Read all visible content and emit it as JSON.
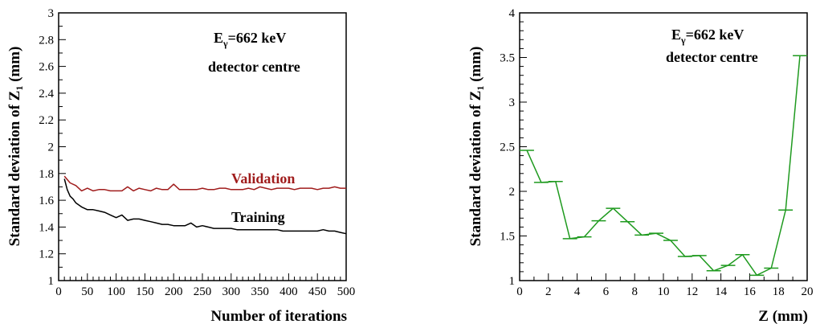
{
  "chart_data": [
    {
      "type": "line",
      "xlabel": "Number of iterations",
      "ylabel": {
        "main": "Standard deviation of Z",
        "sub": "1",
        "unit": " (mm)"
      },
      "xlim": [
        0,
        500
      ],
      "ylim": [
        1,
        3
      ],
      "x_ticks": [
        0,
        50,
        100,
        150,
        200,
        250,
        300,
        350,
        400,
        450,
        500
      ],
      "y_ticks": [
        1,
        1.2,
        1.4,
        1.6,
        1.8,
        2,
        2.2,
        2.4,
        2.6,
        2.8,
        3
      ],
      "grid": false,
      "annotation": {
        "line1_prefix": "E",
        "line1_sub": "γ",
        "line1_rest": "=662 keV",
        "line2": "detector centre"
      },
      "series": [
        {
          "name": "Validation",
          "color": "#a01c1c",
          "x": [
            10,
            20,
            30,
            40,
            50,
            60,
            70,
            80,
            90,
            100,
            110,
            120,
            130,
            140,
            150,
            160,
            170,
            180,
            190,
            200,
            210,
            220,
            230,
            240,
            250,
            260,
            270,
            280,
            290,
            300,
            310,
            320,
            330,
            340,
            350,
            360,
            370,
            380,
            390,
            400,
            410,
            420,
            430,
            440,
            450,
            460,
            470,
            480,
            490,
            500
          ],
          "y": [
            1.78,
            1.73,
            1.71,
            1.67,
            1.69,
            1.67,
            1.68,
            1.68,
            1.67,
            1.67,
            1.67,
            1.7,
            1.67,
            1.69,
            1.68,
            1.67,
            1.69,
            1.68,
            1.68,
            1.72,
            1.68,
            1.68,
            1.68,
            1.68,
            1.69,
            1.68,
            1.68,
            1.69,
            1.69,
            1.68,
            1.68,
            1.68,
            1.69,
            1.68,
            1.7,
            1.69,
            1.68,
            1.69,
            1.69,
            1.69,
            1.68,
            1.69,
            1.69,
            1.69,
            1.68,
            1.69,
            1.69,
            1.7,
            1.69,
            1.69
          ]
        },
        {
          "name": "Training",
          "color": "#000000",
          "x": [
            10,
            15,
            20,
            25,
            30,
            40,
            50,
            60,
            70,
            80,
            90,
            100,
            110,
            120,
            130,
            140,
            150,
            160,
            170,
            180,
            190,
            200,
            210,
            220,
            230,
            240,
            250,
            260,
            270,
            280,
            290,
            300,
            310,
            320,
            330,
            340,
            350,
            360,
            370,
            380,
            390,
            400,
            410,
            420,
            430,
            440,
            450,
            460,
            470,
            480,
            490,
            500
          ],
          "y": [
            1.76,
            1.68,
            1.63,
            1.61,
            1.58,
            1.55,
            1.53,
            1.53,
            1.52,
            1.51,
            1.49,
            1.47,
            1.49,
            1.45,
            1.46,
            1.46,
            1.45,
            1.44,
            1.43,
            1.42,
            1.42,
            1.41,
            1.41,
            1.41,
            1.43,
            1.4,
            1.41,
            1.4,
            1.39,
            1.39,
            1.39,
            1.39,
            1.38,
            1.38,
            1.38,
            1.38,
            1.38,
            1.38,
            1.38,
            1.38,
            1.37,
            1.37,
            1.37,
            1.37,
            1.37,
            1.37,
            1.37,
            1.38,
            1.37,
            1.37,
            1.36,
            1.35
          ]
        }
      ]
    },
    {
      "type": "line",
      "xlabel": "Z (mm)",
      "ylabel": {
        "main": "Standard deviation of Z",
        "sub": "1",
        "unit": " (mm)"
      },
      "xlim": [
        0,
        20
      ],
      "ylim": [
        1,
        4
      ],
      "x_ticks": [
        0,
        2,
        4,
        6,
        8,
        10,
        12,
        14,
        16,
        18,
        20
      ],
      "y_ticks": [
        1,
        1.5,
        2,
        2.5,
        3,
        3.5,
        4
      ],
      "grid": false,
      "annotation": {
        "line1_prefix": "E",
        "line1_sub": "γ",
        "line1_rest": "=662 keV",
        "line2": "detector centre"
      },
      "series": [
        {
          "color": "#1f9a1f",
          "bin_width": 1,
          "x": [
            0.5,
            1.5,
            2.5,
            3.5,
            4.5,
            5.5,
            6.5,
            7.5,
            8.5,
            9.5,
            10.5,
            11.5,
            12.5,
            13.5,
            14.5,
            15.5,
            16.5,
            17.5,
            18.5,
            19.5
          ],
          "y": [
            2.46,
            2.1,
            2.11,
            1.47,
            1.49,
            1.67,
            1.81,
            1.66,
            1.51,
            1.53,
            1.45,
            1.27,
            1.28,
            1.11,
            1.17,
            1.29,
            1.06,
            1.14,
            1.79,
            3.52
          ]
        }
      ]
    }
  ]
}
